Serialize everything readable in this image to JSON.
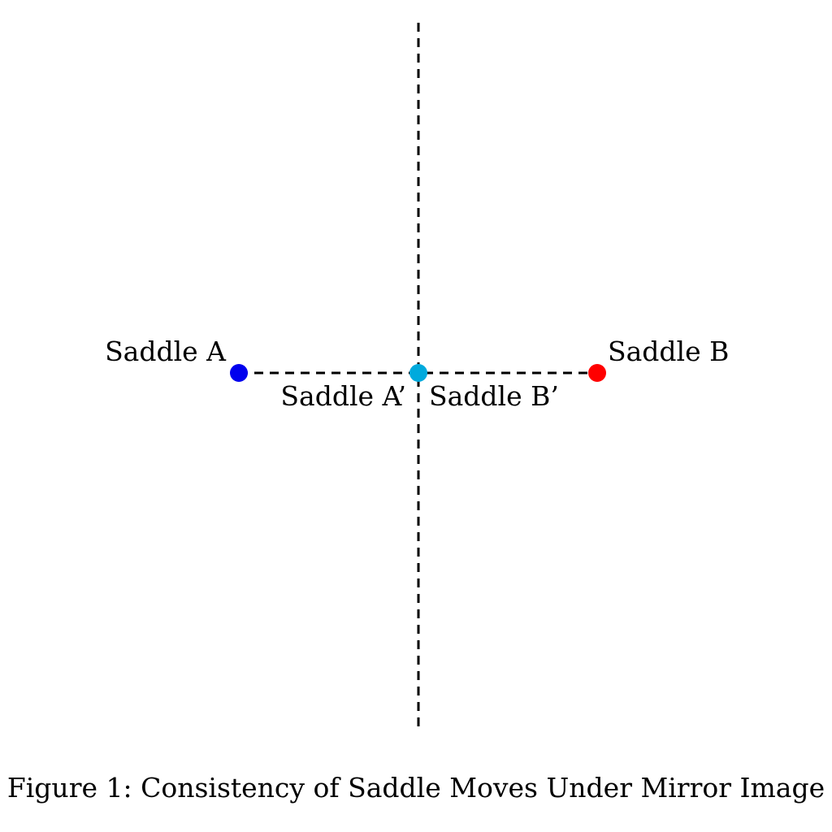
{
  "diagram": {
    "points": {
      "saddle_a": {
        "label": "Saddle A",
        "color": "#0000ee"
      },
      "saddle_b": {
        "label": "Saddle B",
        "color": "#ff0000"
      },
      "mirror_point": {
        "color": "#00aadd"
      }
    },
    "mirror_labels": {
      "a_prime": "Saddle A’",
      "b_prime": "Saddle B’"
    },
    "line_color": "#000000"
  },
  "caption": "Figure 1: Consistency of Saddle Moves Under Mirror Image"
}
